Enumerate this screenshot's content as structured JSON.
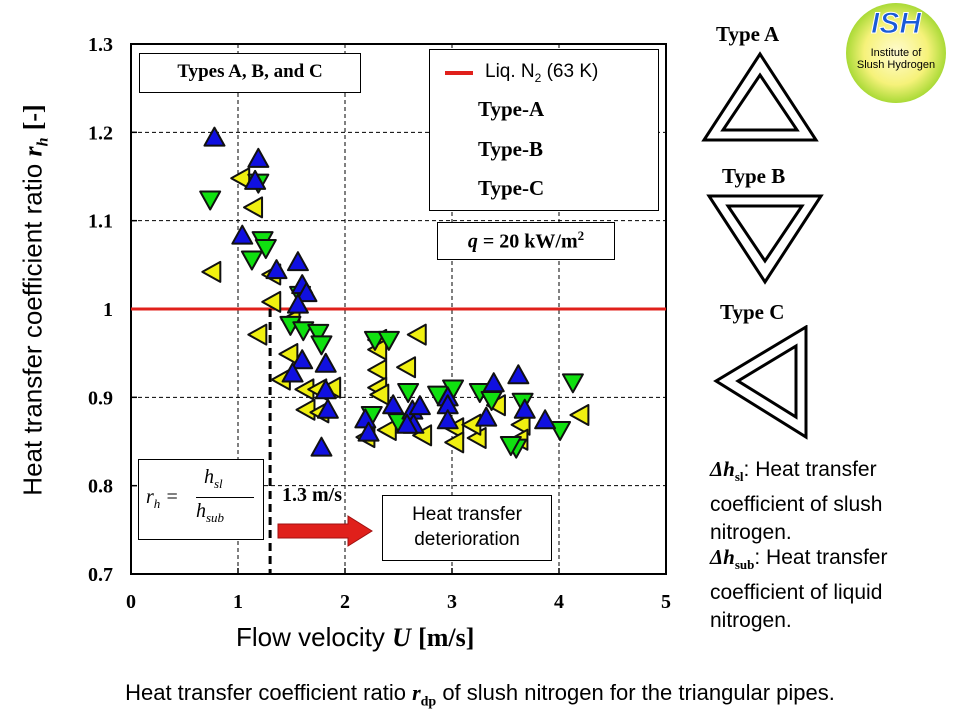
{
  "chart_data": {
    "type": "scatter",
    "title": "",
    "xlabel": "Flow velocity U [m/s]",
    "xlabel_parts": {
      "text": "Flow velocity",
      "var": "U",
      "unit": "[m/s]"
    },
    "ylabel": "Heat transfer coefficient ratio r_h [-]",
    "ylabel_parts": {
      "text": "Heat transfer coefficient ratio",
      "var": "r",
      "sub": "h",
      "unit": "[-]"
    },
    "xlim": [
      0,
      5
    ],
    "ylim": [
      0.7,
      1.3
    ],
    "xticks": [
      "0",
      "1",
      "2",
      "3",
      "4",
      "5"
    ],
    "yticks": [
      "0.7",
      "0.8",
      "0.9",
      "1",
      "1.1",
      "1.2",
      "1.3"
    ],
    "grid": true,
    "legend_placement": "top-right",
    "reference_line": {
      "name": "Liq. N2 (63 K)",
      "y": 1.0,
      "color": "#e0201b"
    },
    "threshold_line": {
      "x": 1.3,
      "label": "1.3 m/s"
    },
    "series": [
      {
        "name": "Type-A",
        "marker": "triangle-up",
        "color": "#1010e0",
        "points": [
          [
            0.78,
            1.194
          ],
          [
            1.19,
            1.17
          ],
          [
            1.16,
            1.145
          ],
          [
            1.04,
            1.083
          ],
          [
            1.36,
            1.044
          ],
          [
            1.56,
            1.053
          ],
          [
            1.6,
            1.027
          ],
          [
            1.64,
            1.018
          ],
          [
            1.56,
            1.005
          ],
          [
            1.6,
            0.942
          ],
          [
            1.82,
            0.938
          ],
          [
            1.51,
            0.927
          ],
          [
            1.82,
            0.908
          ],
          [
            1.84,
            0.886
          ],
          [
            1.78,
            0.843
          ],
          [
            2.19,
            0.875
          ],
          [
            2.22,
            0.86
          ],
          [
            2.45,
            0.891
          ],
          [
            2.63,
            0.885
          ],
          [
            2.7,
            0.89
          ],
          [
            2.64,
            0.869
          ],
          [
            2.58,
            0.869
          ],
          [
            2.96,
            0.9
          ],
          [
            2.96,
            0.891
          ],
          [
            2.96,
            0.874
          ],
          [
            3.39,
            0.916
          ],
          [
            3.62,
            0.925
          ],
          [
            3.32,
            0.877
          ],
          [
            3.68,
            0.886
          ],
          [
            3.87,
            0.874
          ]
        ]
      },
      {
        "name": "Type-B",
        "marker": "triangle-down",
        "color": "#10e010",
        "points": [
          [
            0.74,
            1.124
          ],
          [
            1.19,
            1.143
          ],
          [
            1.23,
            1.078
          ],
          [
            1.26,
            1.069
          ],
          [
            1.13,
            1.056
          ],
          [
            1.58,
            1.016
          ],
          [
            1.49,
            0.982
          ],
          [
            1.61,
            0.976
          ],
          [
            1.75,
            0.973
          ],
          [
            1.78,
            0.96
          ],
          [
            2.28,
            0.965
          ],
          [
            2.41,
            0.965
          ],
          [
            2.25,
            0.88
          ],
          [
            2.5,
            0.872
          ],
          [
            2.59,
            0.906
          ],
          [
            2.87,
            0.903
          ],
          [
            3.01,
            0.91
          ],
          [
            3.26,
            0.906
          ],
          [
            3.37,
            0.897
          ],
          [
            3.66,
            0.895
          ],
          [
            3.6,
            0.843
          ],
          [
            3.55,
            0.846
          ],
          [
            4.01,
            0.863
          ],
          [
            4.13,
            0.917
          ]
        ]
      },
      {
        "name": "Type-C",
        "marker": "triangle-left",
        "color": "#f0f010",
        "points": [
          [
            1.03,
            1.148
          ],
          [
            1.15,
            1.115
          ],
          [
            0.76,
            1.042
          ],
          [
            1.32,
            1.039
          ],
          [
            1.32,
            1.008
          ],
          [
            1.19,
            0.971
          ],
          [
            1.5,
            0.988
          ],
          [
            1.48,
            0.949
          ],
          [
            1.41,
            0.92
          ],
          [
            1.63,
            0.909
          ],
          [
            1.75,
            0.909
          ],
          [
            1.88,
            0.911
          ],
          [
            1.64,
            0.886
          ],
          [
            1.77,
            0.883
          ],
          [
            2.31,
            0.965
          ],
          [
            2.31,
            0.954
          ],
          [
            2.31,
            0.931
          ],
          [
            2.31,
            0.911
          ],
          [
            2.33,
            0.903
          ],
          [
            2.68,
            0.971
          ],
          [
            2.58,
            0.934
          ],
          [
            2.2,
            0.855
          ],
          [
            2.4,
            0.863
          ],
          [
            2.73,
            0.857
          ],
          [
            3.03,
            0.865
          ],
          [
            3.03,
            0.849
          ],
          [
            3.24,
            0.854
          ],
          [
            3.19,
            0.869
          ],
          [
            3.42,
            0.891
          ],
          [
            3.65,
            0.869
          ],
          [
            3.63,
            0.852
          ],
          [
            4.2,
            0.88
          ]
        ]
      }
    ],
    "annotations": {
      "types_box": "Types A, B, and C",
      "heat_flux": {
        "var": "q",
        "text": " = 20 kW/m",
        "sup": "2"
      },
      "deterioration": "Heat transfer deterioration",
      "formula": {
        "lhs": "r",
        "lhs_sub": "h",
        "num": "h",
        "num_sub": "sl",
        "den": "h",
        "den_sub": "sub"
      }
    },
    "legend": {
      "ref_label": "Liq. N",
      "ref_sub": "2",
      "ref_suffix": " (63 K)"
    }
  },
  "side": {
    "type_a": "Type A",
    "type_b": "Type B",
    "type_c": "Type C",
    "logo": {
      "title": "ISH",
      "line1": "Institute of",
      "line2": "Slush Hydrogen"
    },
    "note1": {
      "sym": "Δh",
      "sub": "sl",
      "text": ": Heat transfer coefficient of slush nitrogen."
    },
    "note2": {
      "sym": "Δh",
      "sub": "sub",
      "text": ": Heat transfer coefficient of liquid nitrogen."
    }
  },
  "caption": {
    "before": "Heat transfer coefficient ratio ",
    "var": "r",
    "sub": "dp",
    "after": " of slush nitrogen for the triangular pipes."
  }
}
